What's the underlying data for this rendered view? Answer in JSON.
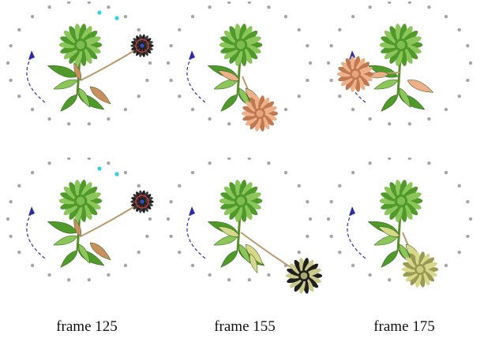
{
  "captions": [
    "frame 125",
    "frame 155",
    "frame 175"
  ],
  "colors": {
    "dot": "#a6a6a6",
    "cyan_marker": "#2ad4e6",
    "arc_arrow": "#2b2ba8",
    "green_leaf": "#4f9a2a",
    "green_leaf_light": "#8cc65a",
    "peach_flower": "#eeb08a",
    "peach_dark": "#c07850",
    "yellow_flower": "#d8d88a",
    "dark_flower": "#1e1e1e",
    "red_ring": "#cc3b3b"
  },
  "rows": [
    {
      "row": "top",
      "panels": [
        {
          "frame_caption_index": 0,
          "second_flower": "dark",
          "state": "bending-up",
          "cyan_markers": true,
          "red_ring": true
        },
        {
          "frame_caption_index": 1,
          "second_flower": "peach",
          "state": "down",
          "cyan_markers": false,
          "red_ring": false
        },
        {
          "frame_caption_index": 2,
          "second_flower": "peach",
          "state": "left",
          "cyan_markers": false,
          "red_ring": false
        }
      ]
    },
    {
      "row": "bottom",
      "panels": [
        {
          "frame_caption_index": 0,
          "second_flower": "dark",
          "state": "bending-up",
          "cyan_markers": true,
          "red_ring": true
        },
        {
          "frame_caption_index": 1,
          "second_flower": "dark-yellow",
          "state": "down-right",
          "cyan_markers": false,
          "red_ring": false
        },
        {
          "frame_caption_index": 2,
          "second_flower": "yellow",
          "state": "down",
          "cyan_markers": false,
          "red_ring": false
        }
      ]
    }
  ]
}
